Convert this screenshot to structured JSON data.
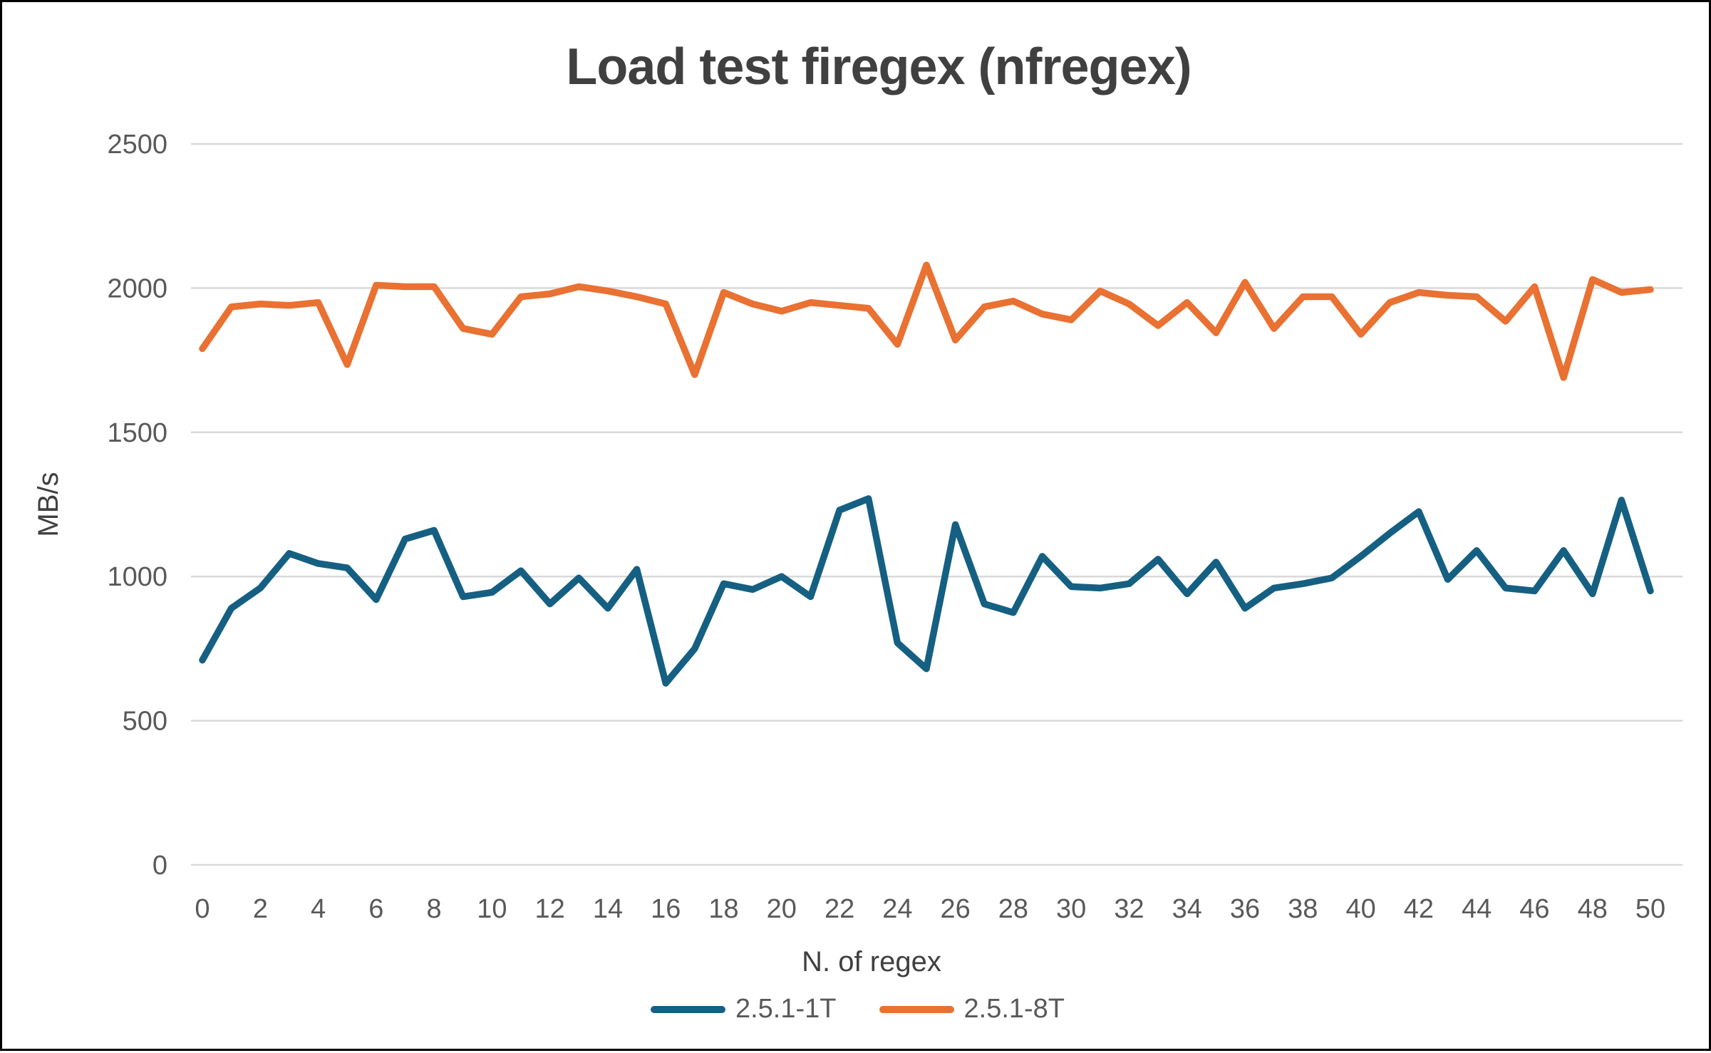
{
  "chart_data": {
    "type": "line",
    "title": "Load test firegex (nfregex)",
    "xlabel": "N. of regex",
    "ylabel": "MB/s",
    "x_ticks": [
      0,
      2,
      4,
      6,
      8,
      10,
      12,
      14,
      16,
      18,
      20,
      22,
      24,
      26,
      28,
      30,
      32,
      34,
      36,
      38,
      40,
      42,
      44,
      46,
      48,
      50
    ],
    "y_ticks": [
      0,
      500,
      1000,
      1500,
      2000,
      2500
    ],
    "ylim": [
      0,
      2500
    ],
    "xlim": [
      0,
      50
    ],
    "grid": true,
    "legend_position": "bottom",
    "background_color": "#ffffff",
    "gridline_color": "#D9D9D9",
    "text_color": "#595959",
    "title_color": "#404040",
    "series": [
      {
        "name": "2.5.1-1T",
        "color": "#156082",
        "values": [
          710,
          890,
          960,
          1080,
          1045,
          1030,
          920,
          1130,
          1160,
          930,
          945,
          1020,
          905,
          995,
          890,
          1025,
          630,
          750,
          975,
          955,
          1000,
          930,
          1230,
          1270,
          770,
          680,
          1180,
          905,
          875,
          1070,
          965,
          960,
          975,
          1060,
          940,
          1050,
          890,
          960,
          975,
          995,
          1070,
          1150,
          1225,
          990,
          1090,
          960,
          950,
          1090,
          940,
          1265,
          950
        ]
      },
      {
        "name": "2.5.1-8T",
        "color": "#E97132",
        "values": [
          1790,
          1935,
          1945,
          1940,
          1950,
          1735,
          2010,
          2005,
          2005,
          1860,
          1840,
          1970,
          1980,
          2005,
          1990,
          1970,
          1945,
          1700,
          1985,
          1945,
          1920,
          1950,
          1940,
          1930,
          1805,
          2080,
          1820,
          1935,
          1955,
          1910,
          1890,
          1990,
          1945,
          1870,
          1950,
          1845,
          2020,
          1860,
          1970,
          1970,
          1840,
          1950,
          1985,
          1975,
          1970,
          1885,
          2005,
          1690,
          2030,
          1985,
          1995
        ]
      }
    ]
  }
}
